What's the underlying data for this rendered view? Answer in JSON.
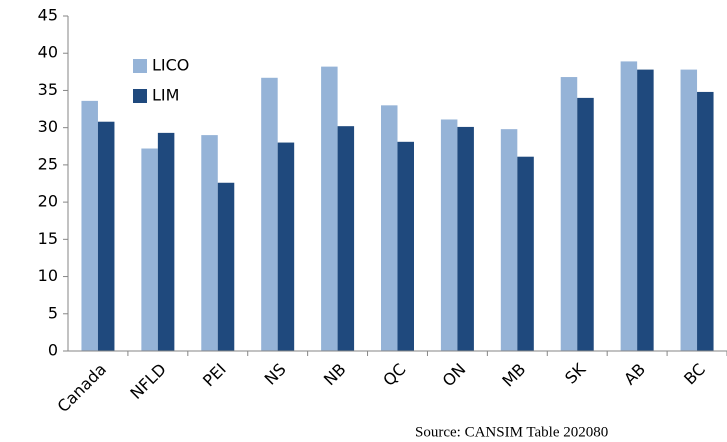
{
  "chart_data": {
    "type": "bar",
    "categories": [
      "Canada",
      "NFLD",
      "PEI",
      "NS",
      "NB",
      "QC",
      "ON",
      "MB",
      "SK",
      "AB",
      "BC"
    ],
    "series": [
      {
        "name": "LICO",
        "color": "#95b3d7",
        "values": [
          33.6,
          27.2,
          29.0,
          36.7,
          38.2,
          33.0,
          31.1,
          29.8,
          36.8,
          38.9,
          37.8
        ]
      },
      {
        "name": "LIM",
        "color": "#1f497d",
        "values": [
          30.8,
          29.3,
          22.6,
          28.0,
          30.2,
          28.1,
          30.1,
          26.1,
          34.0,
          37.8,
          34.8
        ]
      }
    ],
    "ylim": [
      0,
      45
    ],
    "yticks": [
      0,
      5,
      10,
      15,
      20,
      25,
      30,
      35,
      40,
      45
    ],
    "grid": false,
    "legend": "upper left",
    "source": "Source: CANSIM Table 202080"
  }
}
